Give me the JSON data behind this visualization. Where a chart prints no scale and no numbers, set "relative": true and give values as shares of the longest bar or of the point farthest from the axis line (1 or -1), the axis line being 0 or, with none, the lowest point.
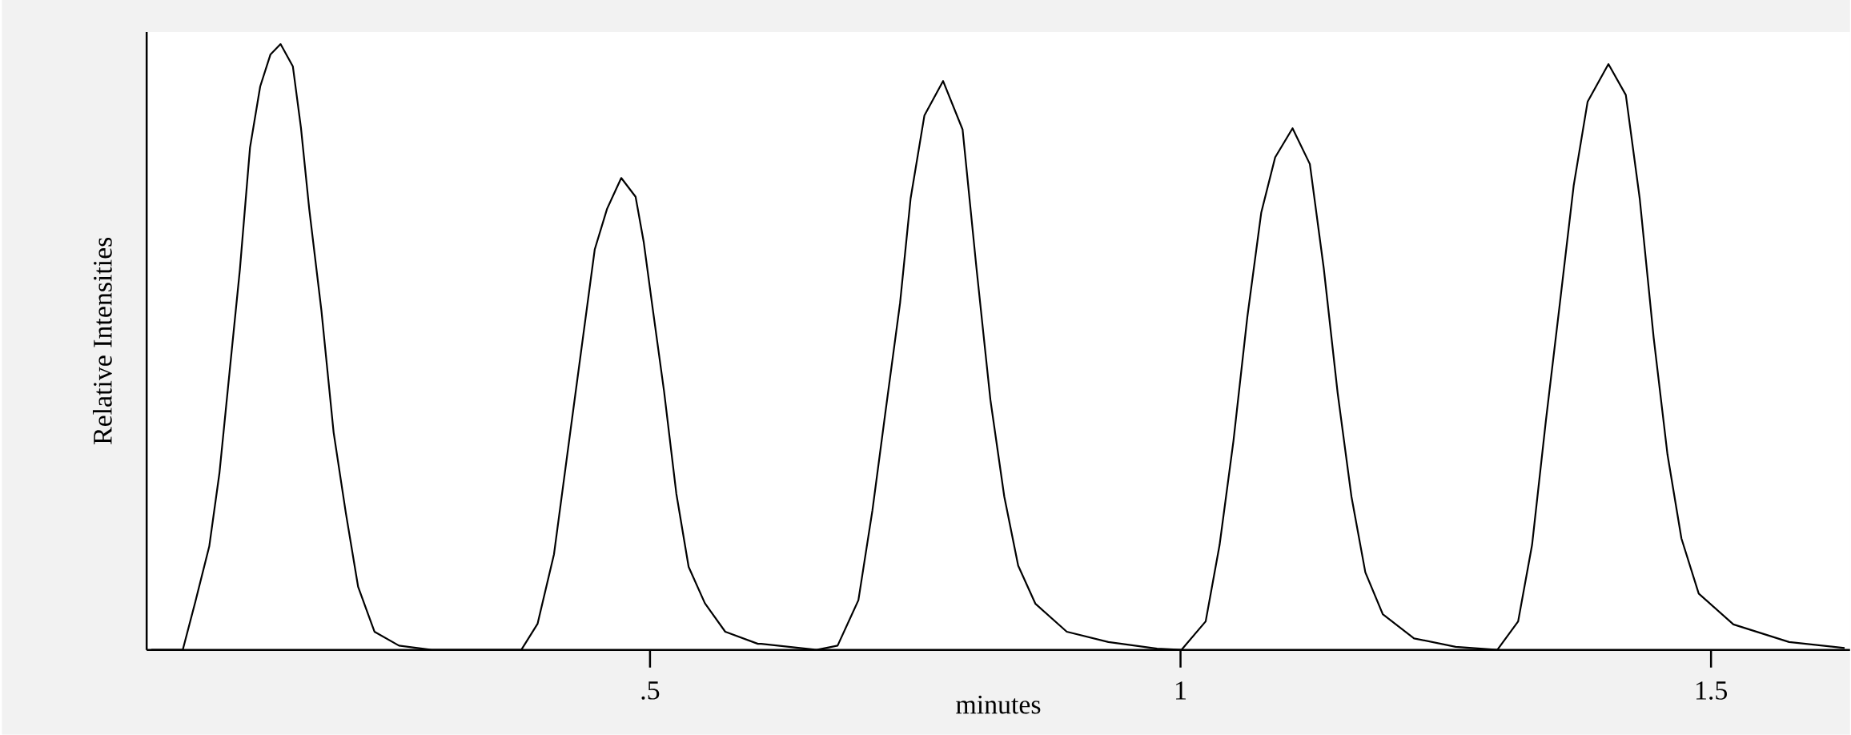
{
  "chart_data": {
    "type": "line",
    "xlabel": "minutes",
    "ylabel": "Relative Intensities",
    "relative": true,
    "color": "#000000",
    "xlim": [
      0.0256,
      1.631
    ],
    "xticks": [
      {
        "value": 0.5,
        "label": ".5"
      },
      1,
      1.5
    ],
    "x": [
      0.03,
      0.0596,
      0.0711,
      0.0846,
      0.0942,
      0.1038,
      0.1134,
      0.123,
      0.1326,
      0.1423,
      0.1518,
      0.1634,
      0.171,
      0.1788,
      0.1903,
      0.2018,
      0.2134,
      0.2249,
      0.2403,
      0.2634,
      0.2941,
      0.3787,
      0.394,
      0.4095,
      0.4248,
      0.4402,
      0.4479,
      0.4595,
      0.4729,
      0.4864,
      0.494,
      0.5017,
      0.5133,
      0.5248,
      0.5364,
      0.5517,
      0.5709,
      0.6017,
      0.6048,
      0.6571,
      0.6768,
      0.6964,
      0.7096,
      0.7226,
      0.7357,
      0.7456,
      0.7586,
      0.7762,
      0.7946,
      0.8077,
      0.8208,
      0.8339,
      0.847,
      0.8633,
      0.8928,
      0.932,
      0.9779,
      1.0008,
      1.0237,
      1.0368,
      1.0499,
      1.063,
      1.0761,
      1.0892,
      1.1056,
      1.1219,
      1.135,
      1.1481,
      1.1611,
      1.1742,
      1.1906,
      1.2201,
      1.2593,
      1.2986,
      1.3182,
      1.3313,
      1.3444,
      1.3576,
      1.3706,
      1.3837,
      1.4033,
      1.4197,
      1.4328,
      1.4459,
      1.459,
      1.4721,
      1.4884,
      1.5211,
      1.5736,
      1.6259
    ],
    "values": [
      0,
      0,
      0.077,
      0.171,
      0.292,
      0.46,
      0.627,
      0.829,
      0.93,
      0.983,
      1.0,
      0.963,
      0.862,
      0.728,
      0.56,
      0.359,
      0.225,
      0.104,
      0.03,
      0.007,
      0,
      0,
      0.043,
      0.158,
      0.359,
      0.56,
      0.661,
      0.728,
      0.779,
      0.748,
      0.674,
      0.574,
      0.426,
      0.258,
      0.137,
      0.077,
      0.03,
      0.01,
      0.01,
      0,
      0.007,
      0.082,
      0.23,
      0.402,
      0.573,
      0.745,
      0.882,
      0.939,
      0.859,
      0.63,
      0.413,
      0.253,
      0.139,
      0.076,
      0.03,
      0.013,
      0.002,
      0,
      0.047,
      0.173,
      0.345,
      0.55,
      0.722,
      0.813,
      0.861,
      0.802,
      0.63,
      0.424,
      0.253,
      0.128,
      0.059,
      0.019,
      0.005,
      0,
      0.047,
      0.173,
      0.379,
      0.573,
      0.767,
      0.905,
      0.967,
      0.916,
      0.745,
      0.516,
      0.322,
      0.184,
      0.093,
      0.042,
      0.013,
      0.003
    ]
  }
}
